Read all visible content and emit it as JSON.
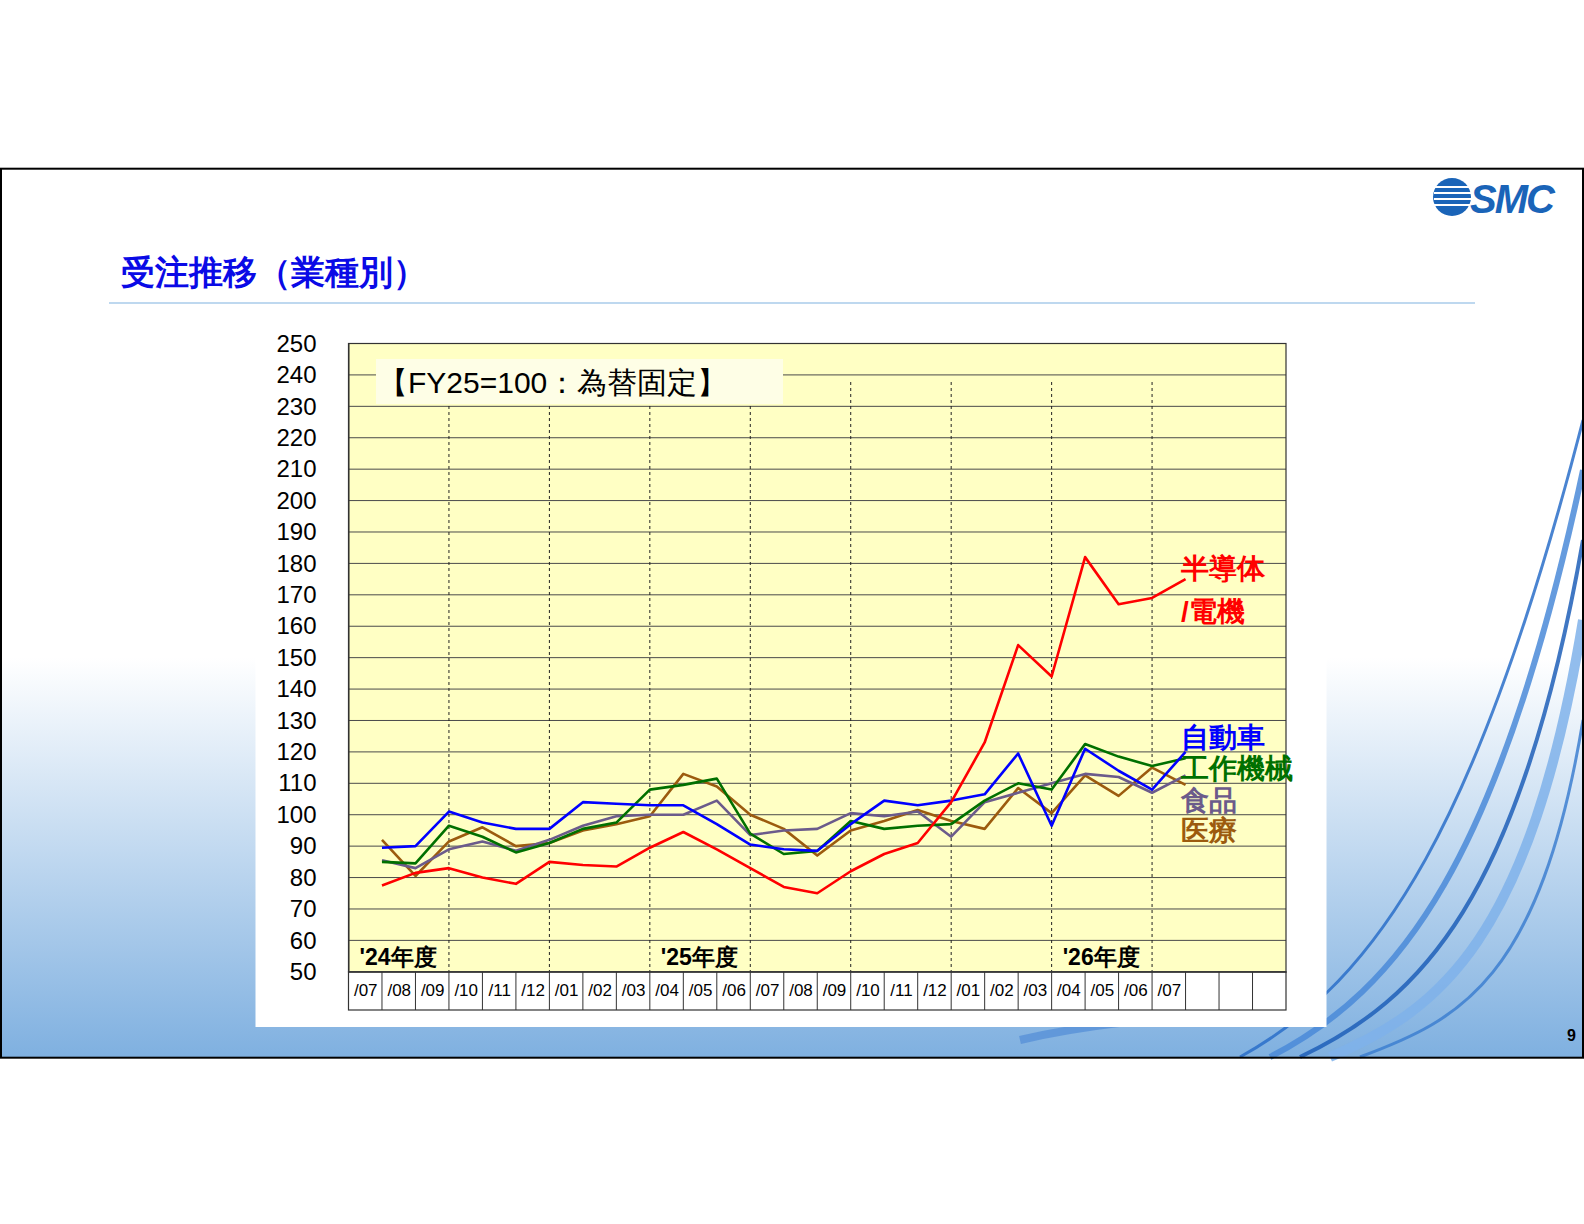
{
  "chart_data": {
    "type": "line",
    "title": "受注推移（業種別）",
    "subtitle": "【FY25=100：為替固定】",
    "categories": [
      "/07",
      "/08",
      "/09",
      "/10",
      "/11",
      "/12",
      "/01",
      "/02",
      "/03",
      "/04",
      "/05",
      "/06",
      "/07",
      "/08",
      "/09",
      "/10",
      "/11",
      "/12",
      "/01",
      "/02",
      "/03",
      "/04",
      "/05",
      "/06",
      "/07",
      null,
      null,
      null
    ],
    "fiscal_years": [
      {
        "label": "'24年度",
        "first_category": 0
      },
      {
        "label": "'25年度",
        "first_category": 9
      },
      {
        "label": "'26年度",
        "first_category": 21
      }
    ],
    "series": [
      {
        "name": "半導体/電機",
        "color": "#ff0000",
        "values": [
          77.5,
          81.5,
          83,
          80,
          78,
          85,
          84,
          83.5,
          89.5,
          94.5,
          89,
          83,
          77,
          75,
          82,
          87.5,
          91,
          104,
          123,
          154,
          144,
          182,
          167,
          169,
          175,
          null,
          null,
          null
        ]
      },
      {
        "name": "自動車",
        "color": "#0000ff",
        "values": [
          89.5,
          90,
          101,
          97.5,
          95.5,
          95.5,
          104,
          103.5,
          103,
          103,
          97,
          90.5,
          89,
          88.5,
          97,
          104.5,
          103,
          104.5,
          106.5,
          119.5,
          96.5,
          121,
          114,
          108,
          120,
          null,
          null,
          null
        ]
      },
      {
        "name": "工作機械",
        "color": "#007000",
        "values": [
          85,
          84.5,
          96.5,
          93,
          88,
          91,
          95.5,
          97.5,
          108,
          109.5,
          111.5,
          94,
          87.5,
          88.5,
          98,
          95.5,
          96.5,
          97,
          104.5,
          110,
          108,
          122.5,
          118.5,
          115.5,
          118,
          null,
          null,
          null
        ]
      },
      {
        "name": "食品",
        "color": "#6b5b8b",
        "values": [
          85.5,
          83,
          89,
          91.5,
          88.5,
          92,
          96.5,
          99.5,
          100,
          100,
          104.5,
          93.5,
          95,
          95.5,
          100.5,
          99.5,
          101,
          93,
          104,
          107,
          110,
          113,
          112,
          107,
          112.5,
          null,
          null,
          null
        ]
      },
      {
        "name": "医療",
        "color": "#9c5b0e",
        "values": [
          92,
          80.5,
          91.5,
          96,
          90,
          91,
          95,
          97,
          99.5,
          113,
          109,
          100,
          95.5,
          87,
          95,
          98,
          101.5,
          98,
          95.5,
          108.5,
          100.5,
          112.5,
          106,
          115,
          109.5,
          null,
          null,
          null
        ]
      }
    ],
    "ylim": [
      50,
      250
    ],
    "yticks": [
      50,
      60,
      70,
      80,
      90,
      100,
      110,
      120,
      130,
      140,
      150,
      160,
      170,
      180,
      190,
      200,
      210,
      220,
      230,
      240,
      250
    ],
    "grid": true
  },
  "slide": {
    "logo": "SMC",
    "page": "9"
  }
}
